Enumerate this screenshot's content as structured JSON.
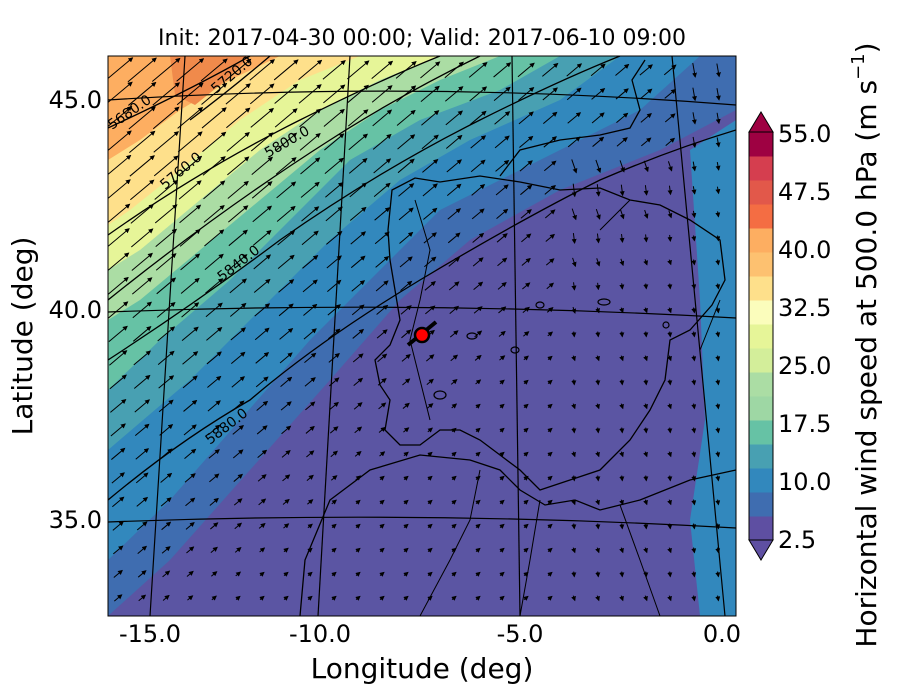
{
  "title": "Init: 2017-04-30 00:00; Valid: 2017-06-10 09:00",
  "axes": {
    "xlabel": "Longitude (deg)",
    "ylabel": "Latitude (deg)",
    "xticks": [
      "-15.0",
      "-10.0",
      "-5.0",
      "0.0"
    ],
    "yticks": [
      "45.0",
      "40.0",
      "35.0"
    ]
  },
  "colorbar": {
    "label": "Horizontal wind speed at 500.0 hPa (m s",
    "label_sup": "−1",
    "label_close": ")",
    "ticks": [
      "55.0",
      "47.5",
      "40.0",
      "32.5",
      "25.0",
      "17.5",
      "10.0",
      "2.5"
    ],
    "colors": [
      "#5e4fa2",
      "#3f6db0",
      "#3288bd",
      "#48a0b2",
      "#66c2a5",
      "#9ed7a4",
      "#abdda4",
      "#d3ee9a",
      "#e6f598",
      "#fbfdbc",
      "#fee08b",
      "#fdc170",
      "#fdae61",
      "#f46d43",
      "#e2584a",
      "#d53e4f",
      "#9e0142"
    ]
  },
  "contours": [
    {
      "label": "5680.0"
    },
    {
      "label": "5720.0"
    },
    {
      "label": "5760.0"
    },
    {
      "label": "5800.0"
    },
    {
      "label": "5840.0"
    },
    {
      "label": "5880.0"
    }
  ],
  "marker": {
    "lon": -7.5,
    "lat": 39.4,
    "color": "#ff0000"
  }
}
